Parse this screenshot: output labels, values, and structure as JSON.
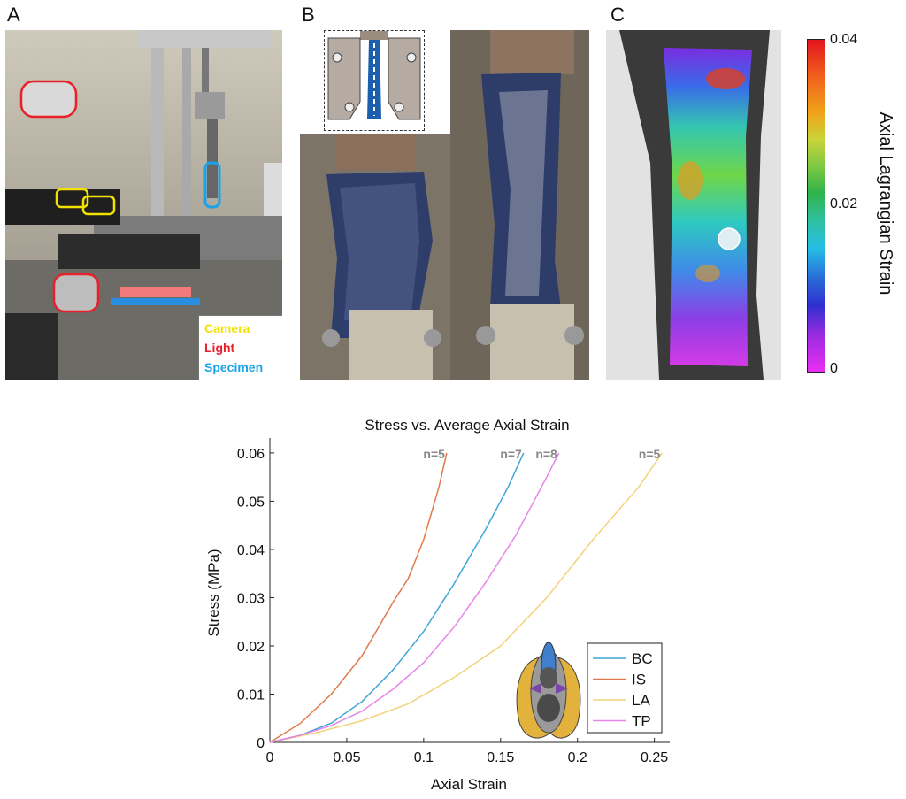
{
  "panels": {
    "a": "A",
    "b": "B",
    "c": "C"
  },
  "photo_a_legend": [
    {
      "label": "Camera",
      "color": "#f2e200"
    },
    {
      "label": "Light",
      "color": "#e8202a"
    },
    {
      "label": "Specimen",
      "color": "#1aa3e8"
    }
  ],
  "colorbar": {
    "label": "Axial Lagrangian Strain",
    "ticks": [
      "0.04",
      "0.02",
      "0"
    ],
    "tick_values": [
      0.04,
      0.02,
      0
    ]
  },
  "chart_data": {
    "type": "line",
    "title": "Stress vs. Average Axial Strain",
    "xlabel": "Axial Strain",
    "ylabel": "Stress (MPa)",
    "xlim": [
      0,
      0.26
    ],
    "ylim": [
      0,
      0.062
    ],
    "xticks": [
      0,
      0.05,
      0.1,
      0.15,
      0.2,
      0.25
    ],
    "yticks": [
      0,
      0.01,
      0.02,
      0.03,
      0.04,
      0.05,
      0.06
    ],
    "xtick_labels": [
      "0",
      "0.05",
      "0.1",
      "0.15",
      "0.2",
      "0.25"
    ],
    "ytick_labels": [
      "0",
      "0.01",
      "0.02",
      "0.03",
      "0.04",
      "0.05",
      "0.06"
    ],
    "legend_position": "bottom-right",
    "series": [
      {
        "name": "BC",
        "color": "#3fa6d8",
        "n_label": "n=7",
        "x": [
          0,
          0.02,
          0.04,
          0.06,
          0.08,
          0.1,
          0.12,
          0.14,
          0.155,
          0.165
        ],
        "y": [
          0,
          0.0015,
          0.004,
          0.0085,
          0.015,
          0.023,
          0.033,
          0.044,
          0.053,
          0.06
        ]
      },
      {
        "name": "IS",
        "color": "#e07a4a",
        "n_label": "n=5",
        "x": [
          0,
          0.02,
          0.04,
          0.06,
          0.08,
          0.09,
          0.1,
          0.11,
          0.115
        ],
        "y": [
          0,
          0.004,
          0.01,
          0.018,
          0.029,
          0.034,
          0.042,
          0.053,
          0.06
        ]
      },
      {
        "name": "LA",
        "color": "#f3d27a",
        "n_label": "n=5",
        "x": [
          0,
          0.03,
          0.06,
          0.09,
          0.12,
          0.15,
          0.18,
          0.21,
          0.24,
          0.255
        ],
        "y": [
          0,
          0.002,
          0.0045,
          0.008,
          0.0135,
          0.02,
          0.03,
          0.042,
          0.053,
          0.06
        ]
      },
      {
        "name": "TP",
        "color": "#e784e8",
        "n_label": "n=8",
        "x": [
          0,
          0.02,
          0.04,
          0.06,
          0.08,
          0.1,
          0.12,
          0.14,
          0.16,
          0.18,
          0.188
        ],
        "y": [
          0,
          0.0015,
          0.0035,
          0.0065,
          0.011,
          0.0165,
          0.024,
          0.033,
          0.043,
          0.055,
          0.06
        ]
      }
    ]
  }
}
